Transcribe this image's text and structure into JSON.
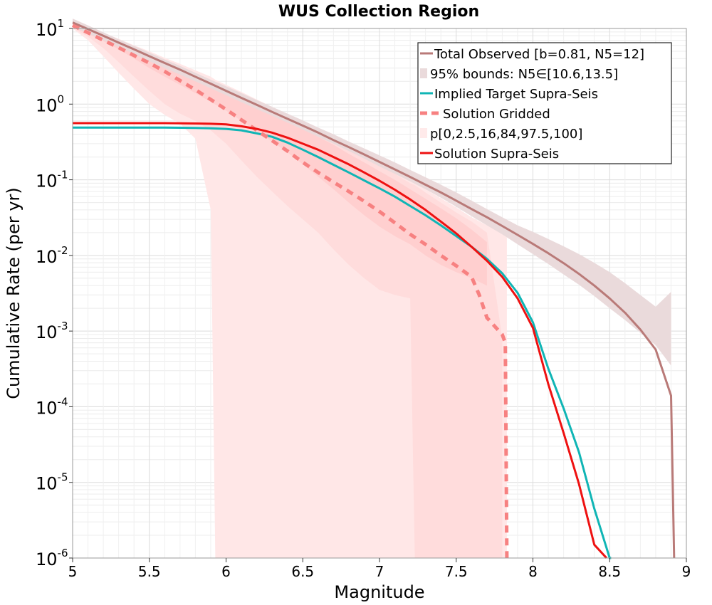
{
  "chart_data": {
    "type": "line",
    "title": "WUS Collection Region",
    "xlabel": "Magnitude",
    "ylabel": "Cumulative Rate (per yr)",
    "xlim": [
      5,
      9
    ],
    "ylim": [
      1e-06,
      10
    ],
    "yscale": "log",
    "grid": true,
    "legend_position": "top-right",
    "x_ticks": [
      "5",
      "5.5",
      "6",
      "6.5",
      "7",
      "7.5",
      "8",
      "8.5",
      "9"
    ],
    "y_ticks": [
      {
        "base": "10",
        "exp": "1"
      },
      {
        "base": "10",
        "exp": "0"
      },
      {
        "base": "10",
        "exp": "-1"
      },
      {
        "base": "10",
        "exp": "-2"
      },
      {
        "base": "10",
        "exp": "-3"
      },
      {
        "base": "10",
        "exp": "-4"
      },
      {
        "base": "10",
        "exp": "-5"
      },
      {
        "base": "10",
        "exp": "-6"
      }
    ],
    "legend": [
      {
        "label": "Total Observed [b=0.81, N5=12]",
        "color": "#b97a78",
        "style": "line"
      },
      {
        "label": "95% bounds: N5∈[10.6,13.5]",
        "color": "#eadadb",
        "style": "patch"
      },
      {
        "label": "Implied Target Supra-Seis",
        "color": "#10b5b5",
        "style": "line"
      },
      {
        "label": "Solution Gridded",
        "color": "#f78181",
        "style": "dashed"
      },
      {
        "label": "p[0,2.5,16,84,97.5,100]",
        "color": "#ffeaea",
        "style": "patch"
      },
      {
        "label": "Solution Supra-Seis",
        "color": "#ee1111",
        "style": "line"
      }
    ],
    "bands": [
      {
        "name": "p[0,2.5,16,84,97.5,100] (0-100)",
        "color": "#ffe7e7",
        "x": [
          5,
          5.1,
          5.2,
          5.3,
          5.4,
          5.5,
          5.6,
          5.7,
          5.8,
          5.9,
          5.93,
          6.0,
          6.1,
          6.2,
          6.3,
          6.4,
          6.5,
          6.6,
          6.7,
          6.8,
          6.9,
          7.0,
          7.1,
          7.2,
          7.23,
          7.3,
          7.4,
          7.5,
          7.6,
          7.7,
          7.8,
          7.83
        ],
        "upper": [
          12.5,
          10.5,
          8.8,
          7.3,
          6.0,
          5.0,
          4.1,
          3.4,
          2.8,
          2.3,
          2.1,
          1.8,
          1.45,
          1.15,
          0.92,
          0.74,
          0.58,
          0.46,
          0.36,
          0.28,
          0.22,
          0.17,
          0.13,
          0.1,
          0.093,
          0.075,
          0.057,
          0.043,
          0.032,
          0.025,
          0.02,
          0.02
        ],
        "lower": [
          10.0,
          7.0,
          4.3,
          2.6,
          1.6,
          1.0,
          0.72,
          0.55,
          0.35,
          0.04,
          1e-06,
          1e-06,
          1e-06,
          1e-06,
          1e-06,
          1e-06,
          1e-06,
          1e-06,
          1e-06,
          1e-06,
          1e-06,
          1e-06,
          1e-06,
          1e-06,
          1e-06,
          1e-06,
          1e-06,
          1e-06,
          1e-06,
          1e-06,
          1e-06,
          1e-06
        ]
      },
      {
        "name": "p[0,2.5,16,84,97.5,100] (2.5-97.5)",
        "color": "#ffdcdc",
        "x": [
          5,
          5.1,
          5.2,
          5.3,
          5.4,
          5.5,
          5.6,
          5.7,
          5.8,
          5.9,
          6.0,
          6.1,
          6.2,
          6.3,
          6.4,
          6.5,
          6.6,
          6.7,
          6.8,
          6.9,
          7.0,
          7.1,
          7.2,
          7.23,
          7.3,
          7.4,
          7.5,
          7.6,
          7.7,
          7.8
        ],
        "upper": [
          11.5,
          9.8,
          8.2,
          6.8,
          5.6,
          4.6,
          3.8,
          3.2,
          2.6,
          2.1,
          1.7,
          1.35,
          1.07,
          0.86,
          0.69,
          0.54,
          0.43,
          0.34,
          0.26,
          0.2,
          0.16,
          0.12,
          0.09,
          0.085,
          0.068,
          0.05,
          0.037,
          0.028,
          0.02,
          0.0008
        ],
        "lower": [
          10.2,
          7.8,
          5.5,
          3.6,
          2.3,
          1.5,
          1.0,
          0.75,
          0.6,
          0.45,
          0.3,
          0.18,
          0.11,
          0.07,
          0.045,
          0.03,
          0.02,
          0.012,
          0.0075,
          0.005,
          0.0035,
          0.003,
          0.0027,
          1e-06,
          1e-06,
          1e-06,
          1e-06,
          1e-06,
          1e-06,
          1e-06
        ]
      },
      {
        "name": "p[0,2.5,16,84,97.5,100] (16-84)",
        "color": "#ffcfcf",
        "x": [
          5,
          5.1,
          5.2,
          5.3,
          5.4,
          5.5,
          5.6,
          5.7,
          5.8,
          5.9,
          6.0,
          6.1,
          6.2,
          6.3,
          6.4,
          6.5,
          6.6,
          6.7,
          6.8,
          6.9,
          7.0,
          7.1,
          7.2,
          7.3,
          7.4,
          7.5,
          7.6,
          7.7
        ],
        "upper": [
          10.9,
          9.3,
          7.8,
          6.4,
          5.2,
          4.2,
          3.5,
          2.9,
          2.35,
          1.9,
          1.5,
          1.2,
          0.95,
          0.75,
          0.6,
          0.47,
          0.37,
          0.29,
          0.22,
          0.17,
          0.13,
          0.1,
          0.075,
          0.056,
          0.042,
          0.031,
          0.022,
          0.015
        ],
        "lower": [
          10.5,
          8.5,
          6.8,
          5.3,
          4.0,
          3.0,
          2.3,
          1.8,
          1.4,
          1.07,
          0.82,
          0.6,
          0.44,
          0.32,
          0.23,
          0.16,
          0.11,
          0.075,
          0.05,
          0.034,
          0.024,
          0.018,
          0.014,
          0.01,
          0.0075,
          0.006,
          0.005,
          0.004
        ]
      },
      {
        "name": "95% bounds",
        "color": "#eadadb",
        "x": [
          5,
          5.1,
          5.2,
          5.3,
          5.4,
          5.5,
          5.6,
          5.7,
          5.8,
          5.9,
          6.0,
          6.1,
          6.2,
          6.3,
          6.4,
          6.5,
          6.6,
          6.7,
          6.8,
          6.9,
          7.0,
          7.1,
          7.2,
          7.3,
          7.4,
          7.5,
          7.6,
          7.7,
          7.8,
          7.9,
          8.0,
          8.1,
          8.2,
          8.3,
          8.4,
          8.5,
          8.6,
          8.7,
          8.8,
          8.9
        ],
        "upper": [
          13.5,
          11.0,
          8.9,
          7.2,
          5.9,
          4.8,
          3.9,
          3.2,
          2.6,
          2.1,
          1.72,
          1.4,
          1.13,
          0.92,
          0.75,
          0.61,
          0.49,
          0.4,
          0.32,
          0.26,
          0.21,
          0.17,
          0.135,
          0.108,
          0.086,
          0.068,
          0.053,
          0.041,
          0.032,
          0.025,
          0.0205,
          0.0165,
          0.0132,
          0.0104,
          0.008,
          0.006,
          0.0043,
          0.003,
          0.0021,
          0.0033
        ],
        "lower": [
          10.6,
          8.6,
          7.0,
          5.7,
          4.6,
          3.7,
          3.0,
          2.45,
          2.0,
          1.62,
          1.31,
          1.06,
          0.86,
          0.7,
          0.57,
          0.46,
          0.37,
          0.3,
          0.24,
          0.19,
          0.15,
          0.12,
          0.095,
          0.075,
          0.058,
          0.044,
          0.033,
          0.025,
          0.019,
          0.014,
          0.0104,
          0.0077,
          0.0056,
          0.0041,
          0.0029,
          0.002,
          0.0014,
          0.00095,
          0.00065,
          0.00035
        ]
      }
    ],
    "series": [
      {
        "name": "Total Observed [b=0.81, N5=12]",
        "color": "#b97a78",
        "dash": "",
        "x": [
          5.0,
          5.1,
          5.2,
          5.3,
          5.4,
          5.5,
          5.6,
          5.7,
          5.8,
          5.9,
          6.0,
          6.1,
          6.2,
          6.3,
          6.4,
          6.5,
          6.6,
          6.7,
          6.8,
          6.9,
          7.0,
          7.1,
          7.2,
          7.3,
          7.4,
          7.5,
          7.6,
          7.7,
          7.8,
          7.9,
          8.0,
          8.1,
          8.2,
          8.3,
          8.4,
          8.5,
          8.6,
          8.7,
          8.8,
          8.9,
          8.92
        ],
        "y": [
          12.0,
          9.8,
          8.0,
          6.5,
          5.3,
          4.3,
          3.5,
          2.85,
          2.3,
          1.86,
          1.5,
          1.21,
          0.98,
          0.79,
          0.64,
          0.52,
          0.42,
          0.335,
          0.27,
          0.216,
          0.172,
          0.137,
          0.109,
          0.086,
          0.068,
          0.053,
          0.041,
          0.032,
          0.0245,
          0.0187,
          0.0142,
          0.0107,
          0.0079,
          0.0057,
          0.004,
          0.0027,
          0.00175,
          0.00105,
          0.00057,
          0.00014,
          1e-06
        ]
      },
      {
        "name": "Implied Target Supra-Seis",
        "color": "#10b5b5",
        "dash": "",
        "x": [
          5.0,
          5.2,
          5.4,
          5.6,
          5.8,
          5.9,
          6.0,
          6.1,
          6.2,
          6.3,
          6.4,
          6.5,
          6.6,
          6.7,
          6.8,
          6.9,
          7.0,
          7.1,
          7.2,
          7.3,
          7.4,
          7.5,
          7.6,
          7.7,
          7.8,
          7.9,
          8.0,
          8.1,
          8.2,
          8.3,
          8.4,
          8.5,
          8.51
        ],
        "y": [
          0.49,
          0.49,
          0.49,
          0.49,
          0.485,
          0.48,
          0.47,
          0.45,
          0.41,
          0.37,
          0.31,
          0.25,
          0.2,
          0.158,
          0.125,
          0.098,
          0.077,
          0.06,
          0.045,
          0.034,
          0.025,
          0.018,
          0.013,
          0.009,
          0.0058,
          0.0032,
          0.0013,
          0.00032,
          9.5e-05,
          2.5e-05,
          4.5e-06,
          1e-06,
          1e-06
        ]
      },
      {
        "name": "Solution Gridded",
        "color": "#f78181",
        "dash": "10,8",
        "x": [
          5.0,
          5.1,
          5.2,
          5.3,
          5.4,
          5.5,
          5.6,
          5.7,
          5.8,
          5.9,
          6.0,
          6.1,
          6.2,
          6.3,
          6.4,
          6.5,
          6.6,
          6.7,
          6.8,
          6.9,
          7.0,
          7.1,
          7.2,
          7.3,
          7.4,
          7.5,
          7.6,
          7.65,
          7.7,
          7.8,
          7.82,
          7.83
        ],
        "y": [
          11.0,
          8.8,
          7.0,
          5.6,
          4.4,
          3.5,
          2.7,
          2.05,
          1.55,
          1.15,
          0.85,
          0.62,
          0.45,
          0.33,
          0.24,
          0.17,
          0.125,
          0.093,
          0.07,
          0.052,
          0.038,
          0.027,
          0.019,
          0.014,
          0.01,
          0.0073,
          0.0052,
          0.003,
          0.0015,
          0.0009,
          0.0007,
          1e-06
        ]
      },
      {
        "name": "Solution Supra-Seis",
        "color": "#ee1111",
        "dash": "",
        "x": [
          5.0,
          5.2,
          5.4,
          5.6,
          5.8,
          5.9,
          6.0,
          6.1,
          6.2,
          6.3,
          6.4,
          6.5,
          6.6,
          6.7,
          6.8,
          6.9,
          7.0,
          7.1,
          7.2,
          7.3,
          7.4,
          7.5,
          7.6,
          7.7,
          7.8,
          7.9,
          8.0,
          8.1,
          8.2,
          8.3,
          8.4,
          8.48
        ],
        "y": [
          0.56,
          0.56,
          0.56,
          0.56,
          0.555,
          0.55,
          0.54,
          0.51,
          0.47,
          0.42,
          0.36,
          0.3,
          0.25,
          0.2,
          0.16,
          0.125,
          0.097,
          0.074,
          0.055,
          0.04,
          0.028,
          0.0195,
          0.013,
          0.0085,
          0.0052,
          0.0027,
          0.0011,
          0.0002,
          4.5e-05,
          9.5e-06,
          1.5e-06,
          1e-06
        ]
      }
    ]
  }
}
